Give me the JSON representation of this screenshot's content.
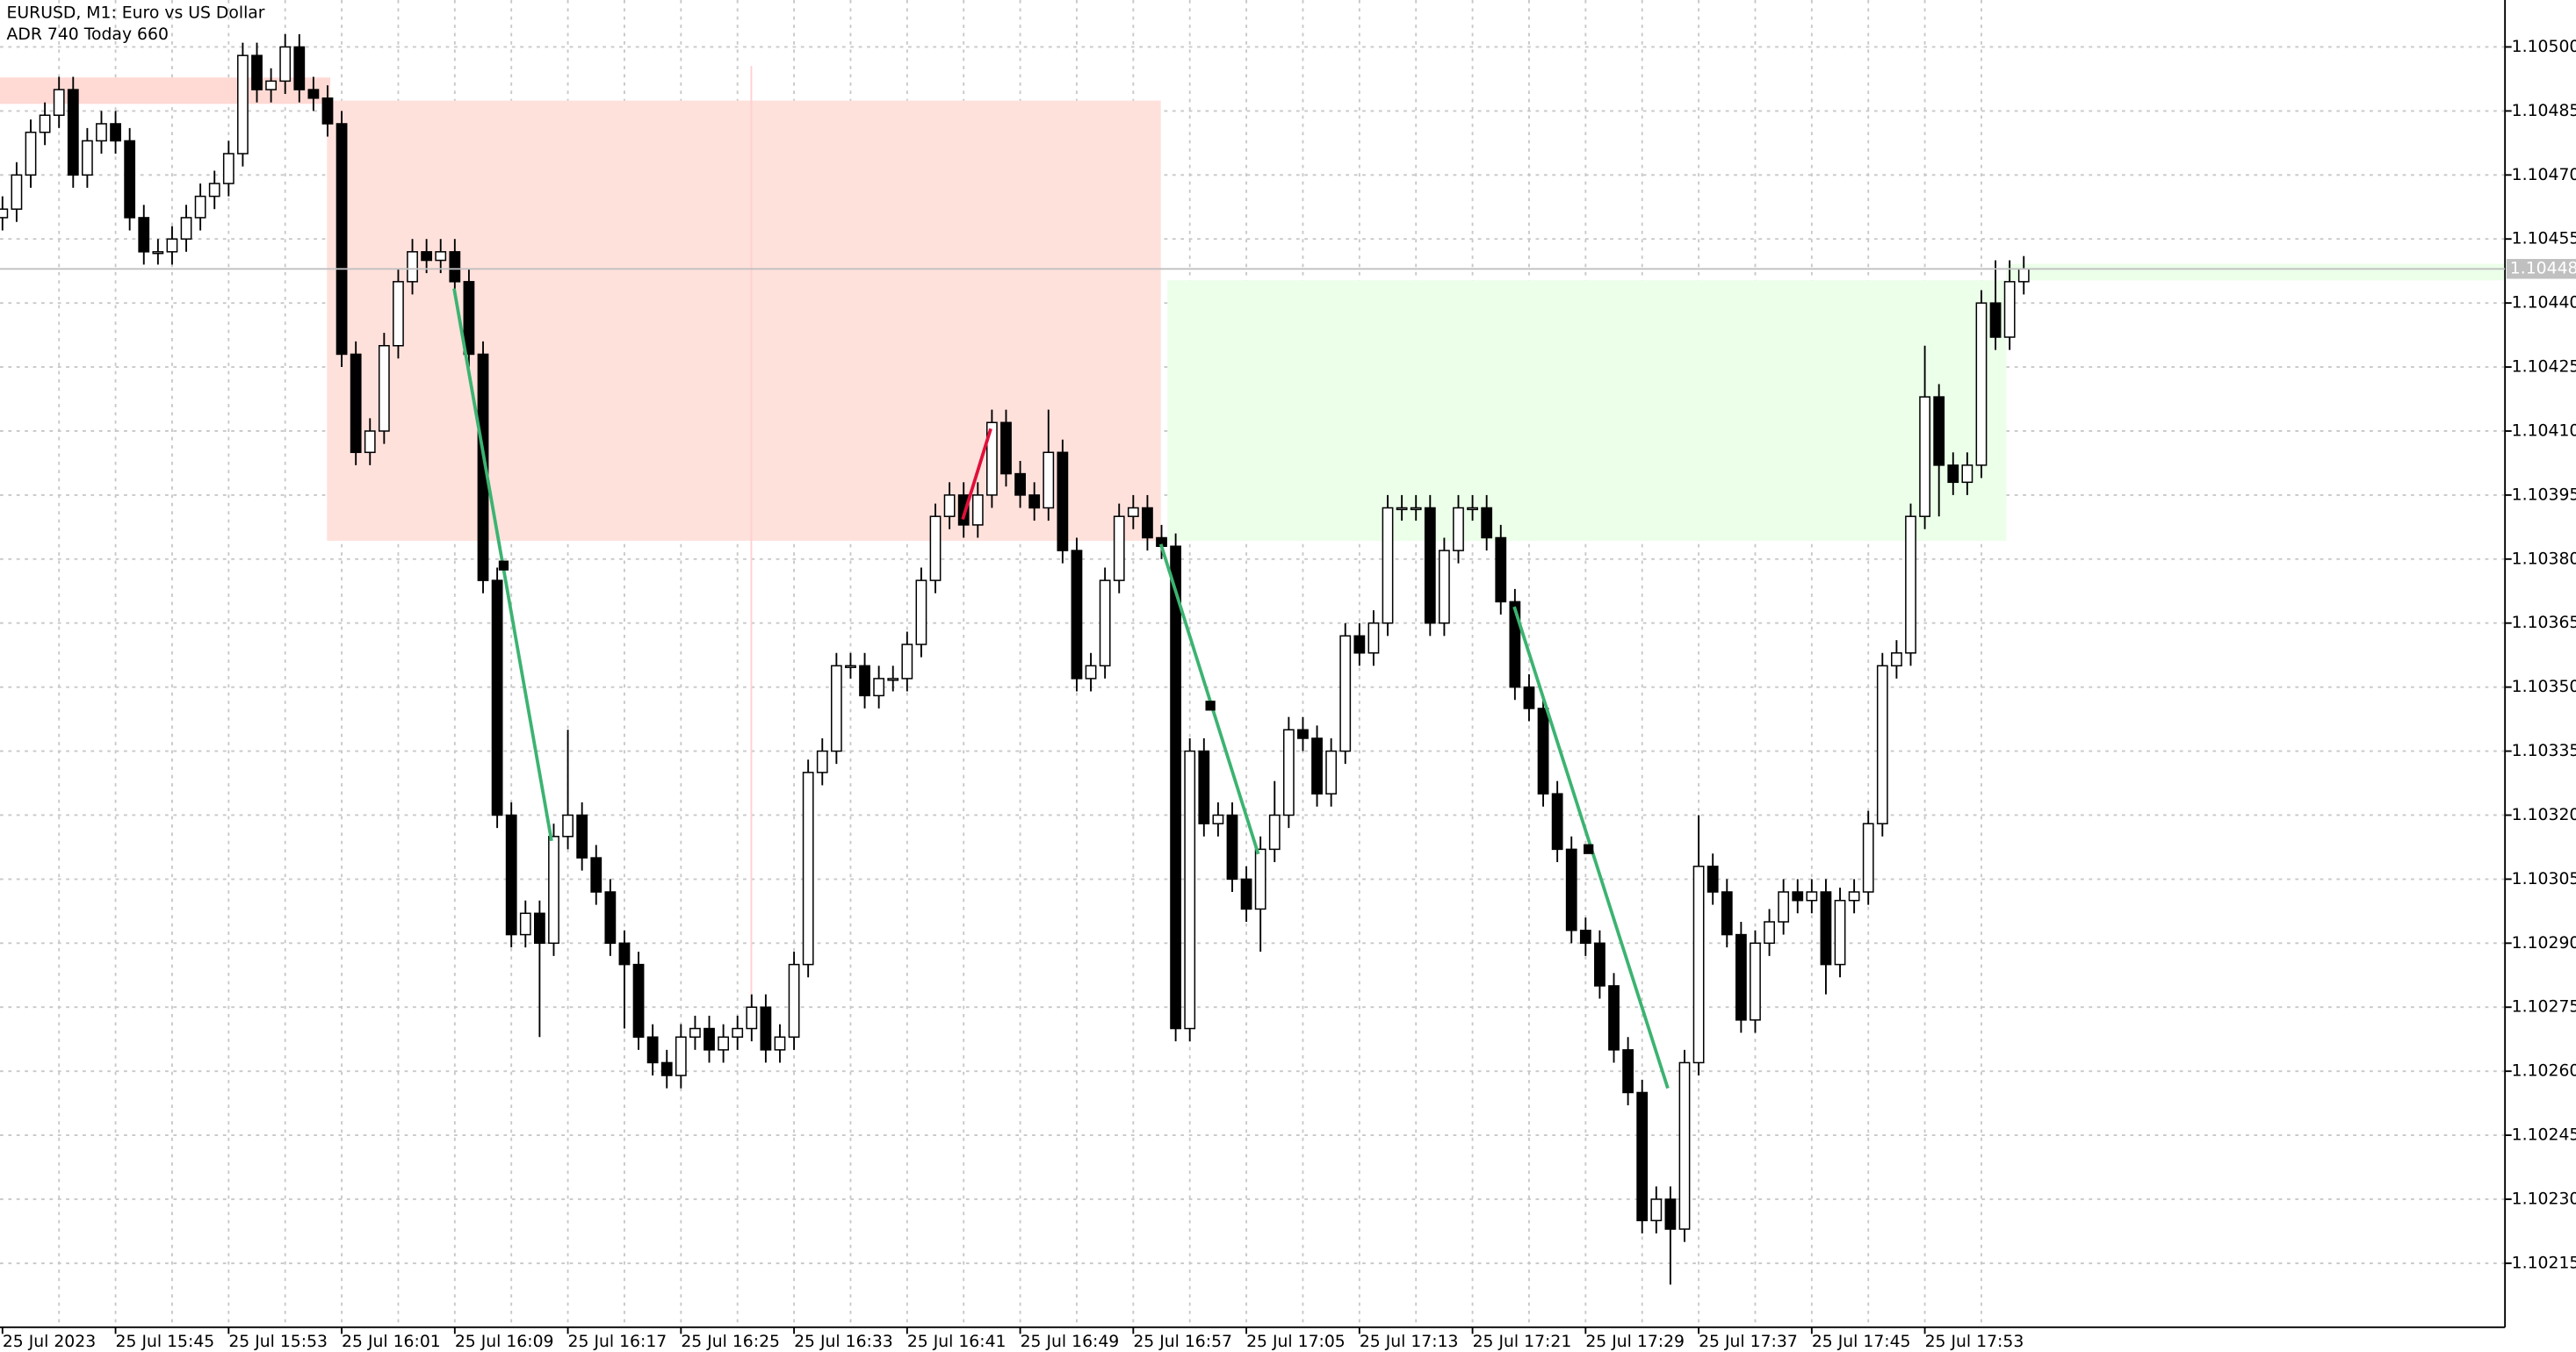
{
  "chart_data": {
    "type": "candlestick",
    "title": "EURUSD, M1:  Euro vs US Dollar",
    "subtitle": "ADR 740  Today 660",
    "categories": [
      "25 Jul 2023",
      null,
      null,
      null,
      null,
      null,
      null,
      null,
      "25 Jul 15:45",
      null,
      null,
      null,
      null,
      null,
      null,
      null,
      "25 Jul 15:53",
      null,
      null,
      null,
      null,
      null,
      null,
      null,
      "25 Jul 16:01",
      null,
      null,
      null,
      null,
      null,
      null,
      null,
      "25 Jul 16:09",
      null,
      null,
      null,
      null,
      null,
      null,
      null,
      "25 Jul 16:17",
      null,
      null,
      null,
      null,
      null,
      null,
      null,
      "25 Jul 16:25",
      null,
      null,
      null,
      null,
      null,
      null,
      null,
      "25 Jul 16:33",
      null,
      null,
      null,
      null,
      null,
      null,
      null,
      "25 Jul 16:41",
      null,
      null,
      null,
      null,
      null,
      null,
      null,
      "25 Jul 16:49",
      null,
      null,
      null,
      null,
      null,
      null,
      null,
      "25 Jul 16:57",
      null,
      null,
      null,
      null,
      null,
      null,
      null,
      "25 Jul 17:05",
      null,
      null,
      null,
      null,
      null,
      null,
      null,
      "25 Jul 17:13",
      null,
      null,
      null,
      null,
      null,
      null,
      null,
      "25 Jul 17:21",
      null,
      null,
      null,
      null,
      null,
      null,
      null,
      "25 Jul 17:29",
      null,
      null,
      null,
      null,
      null,
      null,
      null,
      "25 Jul 17:37",
      null,
      null,
      null,
      null,
      null,
      null,
      null,
      "25 Jul 17:45",
      null,
      null,
      null,
      null,
      null,
      null,
      null,
      "25 Jul 17:53",
      null,
      null,
      null,
      null,
      null,
      null,
      null
    ],
    "open": [
      1.1046,
      1.10462,
      1.1047,
      1.1048,
      1.10484,
      1.1049,
      1.1047,
      1.10478,
      1.10482,
      1.10478,
      1.1046,
      1.10452,
      1.10452,
      1.10455,
      1.1046,
      1.10465,
      1.10468,
      1.10475,
      1.10498,
      1.1049,
      1.10492,
      1.105,
      1.1049,
      1.10488,
      1.10482,
      1.10428,
      1.10405,
      1.1041,
      1.1043,
      1.10445,
      1.10452,
      1.1045,
      1.10452,
      1.10445,
      1.10428,
      1.10375,
      1.1032,
      1.10292,
      1.10297,
      1.1029,
      1.10315,
      1.1032,
      1.1031,
      1.10302,
      1.1029,
      1.10285,
      1.10268,
      1.10262,
      1.10259,
      1.10268,
      1.1027,
      1.10265,
      1.10268,
      1.1027,
      1.10275,
      1.10265,
      1.10268,
      1.10285,
      1.1033,
      1.10335,
      1.10355,
      1.10355,
      1.10348,
      1.10352,
      1.10352,
      1.1036,
      1.10375,
      1.1039,
      1.10395,
      1.10388,
      1.10395,
      1.10412,
      1.104,
      1.10395,
      1.10392,
      1.10405,
      1.10382,
      1.10352,
      1.10355,
      1.10375,
      1.1039,
      1.10392,
      1.10385,
      1.10383,
      1.1027,
      1.10335,
      1.10318,
      1.1032,
      1.10305,
      1.10298,
      1.10312,
      1.1032,
      1.1034,
      1.10338,
      1.10325,
      1.10335,
      1.10362,
      1.10358,
      1.10365,
      1.10392,
      1.10392,
      1.10392,
      1.10365,
      1.10382,
      1.10392,
      1.10392,
      1.10385,
      1.1037,
      1.1035,
      1.10345,
      1.10325,
      1.10312,
      1.10293,
      1.1029,
      1.1028,
      1.10265,
      1.10255,
      1.10225,
      1.1023,
      1.10223,
      1.10262,
      1.10308,
      1.10302,
      1.10292,
      1.10272,
      1.1029,
      1.10295,
      1.10302,
      1.103,
      1.10302,
      1.10285,
      1.103,
      1.10302,
      1.10318,
      1.10355,
      1.10358,
      1.1039,
      1.10418,
      1.10402,
      1.10398,
      1.10402,
      1.1044,
      1.10432,
      1.10445
    ],
    "high": [
      1.10465,
      1.10473,
      1.10483,
      1.10487,
      1.10493,
      1.10493,
      1.10481,
      1.10485,
      1.10485,
      1.10481,
      1.10463,
      1.10455,
      1.10458,
      1.10463,
      1.10468,
      1.10471,
      1.10478,
      1.10501,
      1.10501,
      1.10495,
      1.10503,
      1.10503,
      1.10493,
      1.10491,
      1.10485,
      1.10431,
      1.10413,
      1.10433,
      1.10448,
      1.10455,
      1.10455,
      1.10455,
      1.10455,
      1.10448,
      1.10431,
      1.10378,
      1.10323,
      1.103,
      1.103,
      1.10318,
      1.1034,
      1.10323,
      1.10313,
      1.10305,
      1.10293,
      1.10288,
      1.10271,
      1.10265,
      1.10271,
      1.10273,
      1.10273,
      1.10271,
      1.10273,
      1.10278,
      1.10278,
      1.10271,
      1.10288,
      1.10333,
      1.10338,
      1.10358,
      1.10358,
      1.10358,
      1.10355,
      1.10355,
      1.10363,
      1.10378,
      1.10393,
      1.10398,
      1.10398,
      1.10398,
      1.10415,
      1.10415,
      1.10403,
      1.10398,
      1.10415,
      1.10408,
      1.10385,
      1.10358,
      1.10378,
      1.10393,
      1.10395,
      1.10395,
      1.10388,
      1.10386,
      1.10338,
      1.10338,
      1.10323,
      1.10323,
      1.10308,
      1.10315,
      1.10328,
      1.10343,
      1.10343,
      1.10341,
      1.10338,
      1.10365,
      1.10365,
      1.10368,
      1.10395,
      1.10395,
      1.10395,
      1.10395,
      1.10385,
      1.10395,
      1.10395,
      1.10395,
      1.10388,
      1.10373,
      1.10353,
      1.10348,
      1.10328,
      1.10315,
      1.10296,
      1.10293,
      1.10283,
      1.10268,
      1.10258,
      1.10233,
      1.10233,
      1.10265,
      1.1032,
      1.10311,
      1.10305,
      1.10295,
      1.10293,
      1.10298,
      1.10305,
      1.10305,
      1.10305,
      1.10305,
      1.10303,
      1.10305,
      1.10321,
      1.10358,
      1.10361,
      1.10393,
      1.1043,
      1.10421,
      1.10405,
      1.10405,
      1.10443,
      1.1045,
      1.1045,
      1.10451
    ],
    "low": [
      1.10457,
      1.10459,
      1.10467,
      1.10477,
      1.10481,
      1.10467,
      1.10467,
      1.10475,
      1.10475,
      1.10457,
      1.10449,
      1.10449,
      1.10449,
      1.10452,
      1.10457,
      1.10462,
      1.10465,
      1.10472,
      1.10487,
      1.10487,
      1.10489,
      1.10487,
      1.10485,
      1.10479,
      1.10425,
      1.10402,
      1.10402,
      1.10407,
      1.10427,
      1.10442,
      1.10447,
      1.10447,
      1.10442,
      1.10425,
      1.10372,
      1.10317,
      1.10289,
      1.10289,
      1.10268,
      1.10287,
      1.10312,
      1.10307,
      1.10299,
      1.10287,
      1.1027,
      1.10265,
      1.10259,
      1.10256,
      1.10256,
      1.10265,
      1.10262,
      1.10262,
      1.10265,
      1.10267,
      1.10262,
      1.10262,
      1.10265,
      1.10282,
      1.10327,
      1.10332,
      1.10352,
      1.10345,
      1.10345,
      1.10349,
      1.10349,
      1.10357,
      1.10372,
      1.10387,
      1.10385,
      1.10385,
      1.10392,
      1.10397,
      1.10392,
      1.10389,
      1.10389,
      1.10379,
      1.10349,
      1.10349,
      1.10352,
      1.10372,
      1.10387,
      1.10382,
      1.1038,
      1.10267,
      1.10267,
      1.10315,
      1.10315,
      1.10302,
      1.10295,
      1.10288,
      1.10309,
      1.10317,
      1.10335,
      1.10322,
      1.10322,
      1.10332,
      1.10355,
      1.10355,
      1.10362,
      1.10389,
      1.10389,
      1.10362,
      1.10362,
      1.10379,
      1.10389,
      1.10382,
      1.10367,
      1.10347,
      1.10342,
      1.10322,
      1.10309,
      1.1029,
      1.10287,
      1.10277,
      1.10262,
      1.10252,
      1.10222,
      1.10222,
      1.1021,
      1.1022,
      1.10259,
      1.10299,
      1.10289,
      1.10269,
      1.10269,
      1.10287,
      1.10292,
      1.10297,
      1.10297,
      1.10278,
      1.10282,
      1.10297,
      1.10299,
      1.10315,
      1.10352,
      1.10355,
      1.10387,
      1.1039,
      1.10395,
      1.10395,
      1.10399,
      1.10429,
      1.10429,
      1.10442
    ],
    "close": [
      1.10462,
      1.1047,
      1.1048,
      1.10484,
      1.1049,
      1.1047,
      1.10478,
      1.10482,
      1.10478,
      1.1046,
      1.10452,
      1.10452,
      1.10455,
      1.1046,
      1.10465,
      1.10468,
      1.10475,
      1.10498,
      1.1049,
      1.10492,
      1.105,
      1.1049,
      1.10488,
      1.10482,
      1.10428,
      1.10405,
      1.1041,
      1.1043,
      1.10445,
      1.10452,
      1.1045,
      1.10452,
      1.10445,
      1.10428,
      1.10375,
      1.1032,
      1.10292,
      1.10297,
      1.1029,
      1.10315,
      1.1032,
      1.1031,
      1.10302,
      1.1029,
      1.10285,
      1.10268,
      1.10262,
      1.10259,
      1.10268,
      1.1027,
      1.10265,
      1.10268,
      1.1027,
      1.10275,
      1.10265,
      1.10268,
      1.10285,
      1.1033,
      1.10335,
      1.10355,
      1.10355,
      1.10348,
      1.10352,
      1.10352,
      1.1036,
      1.10375,
      1.1039,
      1.10395,
      1.10388,
      1.10395,
      1.10412,
      1.104,
      1.10395,
      1.10392,
      1.10405,
      1.10382,
      1.10352,
      1.10355,
      1.10375,
      1.1039,
      1.10392,
      1.10385,
      1.10383,
      1.1027,
      1.10335,
      1.10318,
      1.1032,
      1.10305,
      1.10298,
      1.10312,
      1.1032,
      1.1034,
      1.10338,
      1.10325,
      1.10335,
      1.10362,
      1.10358,
      1.10365,
      1.10392,
      1.10392,
      1.10392,
      1.10365,
      1.10382,
      1.10392,
      1.10392,
      1.10385,
      1.1037,
      1.1035,
      1.10345,
      1.10325,
      1.10312,
      1.10293,
      1.1029,
      1.1028,
      1.10265,
      1.10255,
      1.10225,
      1.1023,
      1.10223,
      1.10262,
      1.10308,
      1.10302,
      1.10292,
      1.10272,
      1.1029,
      1.10295,
      1.10302,
      1.103,
      1.10302,
      1.10285,
      1.103,
      1.10302,
      1.10318,
      1.10355,
      1.10358,
      1.1039,
      1.10418,
      1.10402,
      1.10398,
      1.10402,
      1.1044,
      1.10432,
      1.10445,
      1.10448
    ],
    "last_price": {
      "value": 1.10448,
      "label": "1.10448"
    },
    "ylim": [
      1.102,
      1.10511
    ],
    "yticks": [
      {
        "value": 1.10215,
        "label": "1.10215"
      },
      {
        "value": 1.1023,
        "label": "1.10230"
      },
      {
        "value": 1.10245,
        "label": "1.10245"
      },
      {
        "value": 1.1026,
        "label": "1.10260"
      },
      {
        "value": 1.10275,
        "label": "1.10275"
      },
      {
        "value": 1.1029,
        "label": "1.10290"
      },
      {
        "value": 1.10305,
        "label": "1.10305"
      },
      {
        "value": 1.1032,
        "label": "1.10320"
      },
      {
        "value": 1.10335,
        "label": "1.10335"
      },
      {
        "value": 1.1035,
        "label": "1.10350"
      },
      {
        "value": 1.10365,
        "label": "1.10365"
      },
      {
        "value": 1.1038,
        "label": "1.10380"
      },
      {
        "value": 1.10395,
        "label": "1.10395"
      },
      {
        "value": 1.1041,
        "label": "1.10410"
      },
      {
        "value": 1.10425,
        "label": "1.10425"
      },
      {
        "value": 1.1044,
        "label": "1.10440"
      },
      {
        "value": 1.10455,
        "label": "1.10455"
      },
      {
        "value": 1.1047,
        "label": "1.10470"
      },
      {
        "value": 1.10485,
        "label": "1.10485"
      },
      {
        "value": 1.105,
        "label": "1.10500"
      }
    ],
    "grid": true,
    "up_color": "#ffffff",
    "down_color": "#000000"
  }
}
